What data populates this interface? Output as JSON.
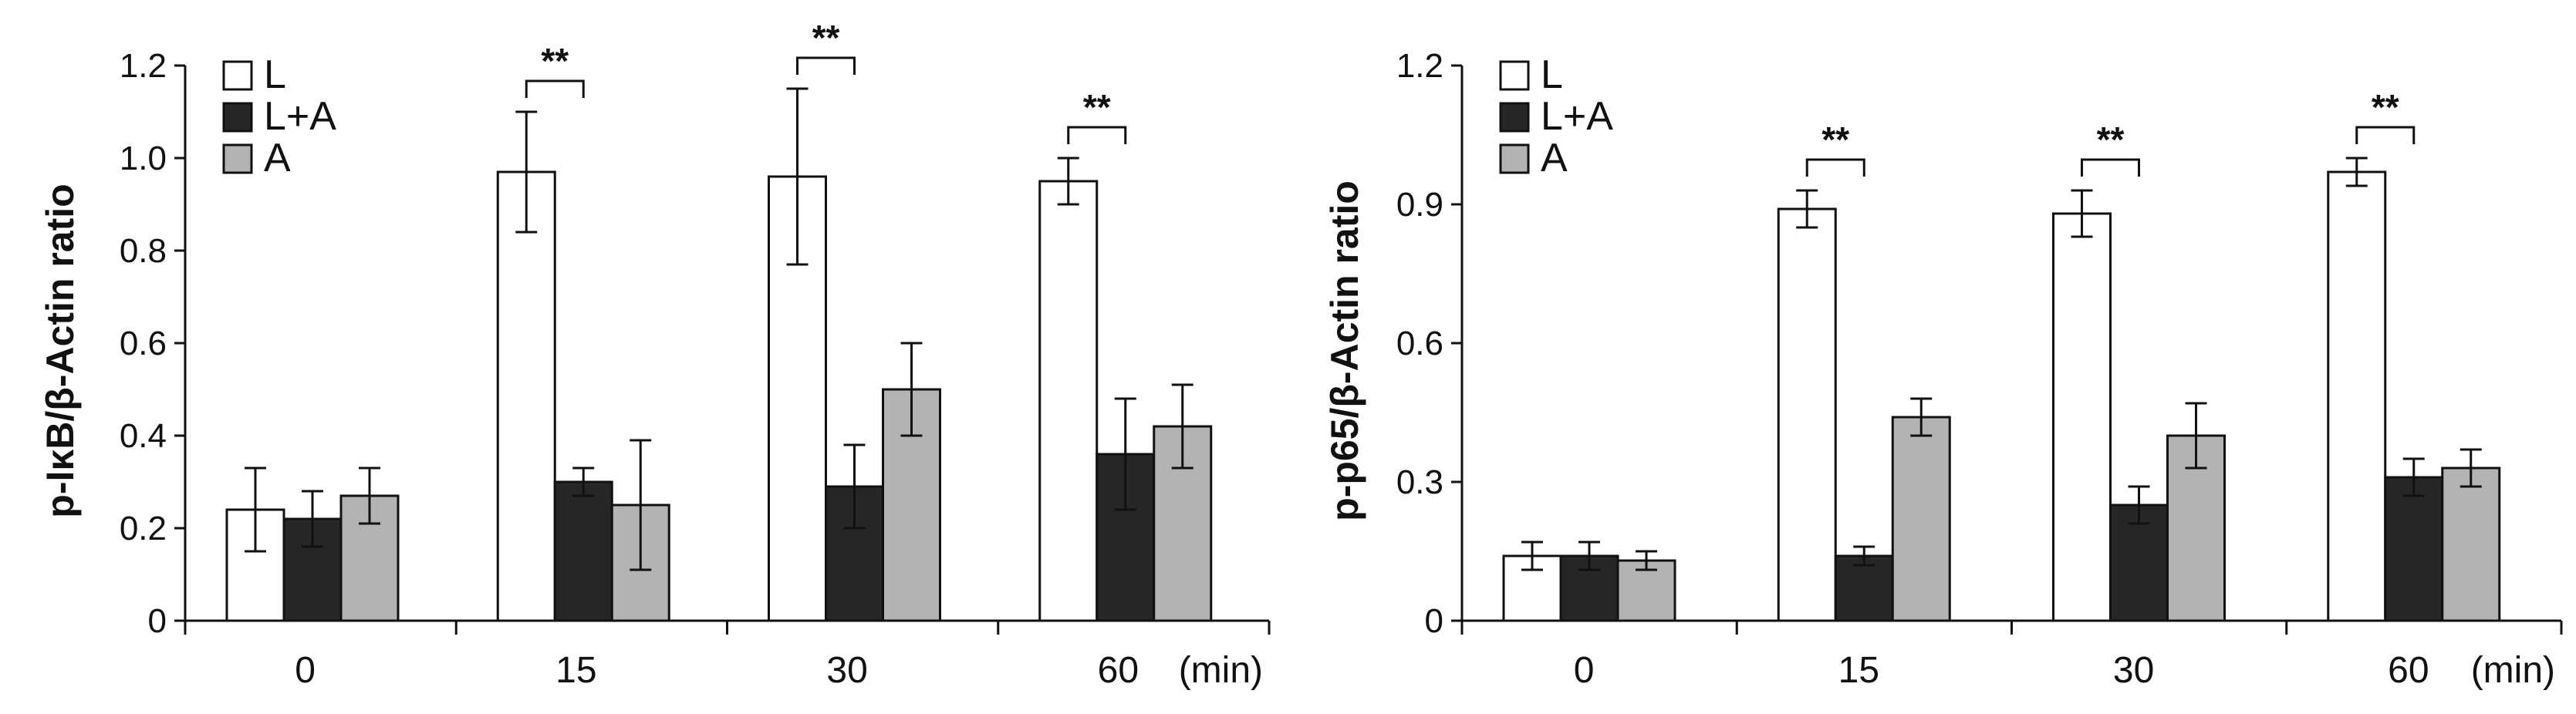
{
  "chart_data": [
    {
      "type": "bar",
      "ylabel": "p-IκB/β-Actin ratio",
      "ylim": [
        0,
        1.2
      ],
      "yticks": [
        "0",
        "0.2",
        "0.4",
        "0.6",
        "0.8",
        "1.0",
        "1.2"
      ],
      "categories": [
        "0",
        "15",
        "30",
        "60"
      ],
      "x_unit": "(min)",
      "legend": [
        "L",
        "L+A",
        "A"
      ],
      "series": [
        {
          "name": "L",
          "values": [
            0.24,
            0.97,
            0.96,
            0.95
          ],
          "errors": [
            0.09,
            0.13,
            0.19,
            0.05
          ]
        },
        {
          "name": "L+A",
          "values": [
            0.22,
            0.3,
            0.29,
            0.36
          ],
          "errors": [
            0.06,
            0.03,
            0.09,
            0.12
          ]
        },
        {
          "name": "A",
          "values": [
            0.27,
            0.25,
            0.5,
            0.42
          ],
          "errors": [
            0.06,
            0.14,
            0.1,
            0.09
          ]
        }
      ],
      "significance": [
        {
          "category": "15",
          "label": "**"
        },
        {
          "category": "30",
          "label": "**"
        },
        {
          "category": "60",
          "label": "**"
        }
      ]
    },
    {
      "type": "bar",
      "ylabel": "p-p65/β-Actin ratio",
      "ylim": [
        0,
        1.2
      ],
      "yticks": [
        "0",
        "0.3",
        "0.6",
        "0.9",
        "1.2"
      ],
      "categories": [
        "0",
        "15",
        "30",
        "60"
      ],
      "x_unit": "(min)",
      "legend": [
        "L",
        "L+A",
        "A"
      ],
      "series": [
        {
          "name": "L",
          "values": [
            0.14,
            0.89,
            0.88,
            0.97
          ],
          "errors": [
            0.03,
            0.04,
            0.05,
            0.03
          ]
        },
        {
          "name": "L+A",
          "values": [
            0.14,
            0.14,
            0.25,
            0.31
          ],
          "errors": [
            0.03,
            0.02,
            0.04,
            0.04
          ]
        },
        {
          "name": "A",
          "values": [
            0.13,
            0.44,
            0.4,
            0.33
          ],
          "errors": [
            0.02,
            0.04,
            0.07,
            0.04
          ]
        }
      ],
      "significance": [
        {
          "category": "15",
          "label": "**"
        },
        {
          "category": "30",
          "label": "**"
        },
        {
          "category": "60",
          "label": "**"
        }
      ]
    }
  ],
  "colors": {
    "L": "#ffffff",
    "L+A": "#262626",
    "A": "#b3b3b3",
    "stroke": "#111111"
  }
}
